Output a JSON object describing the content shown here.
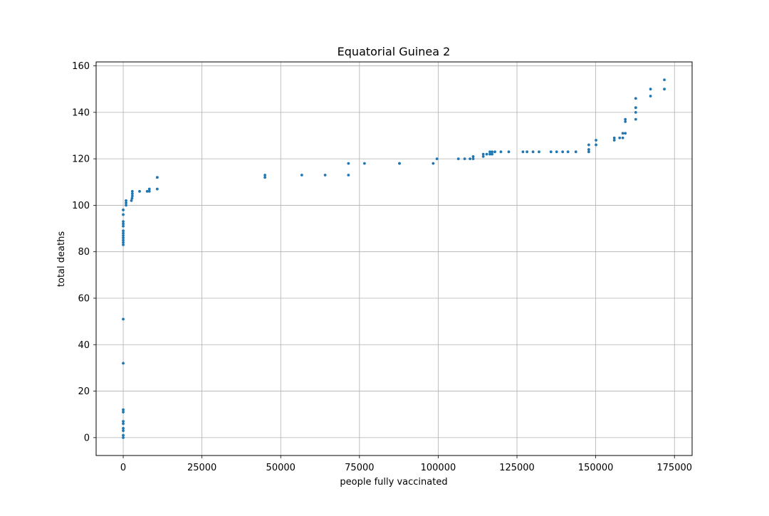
{
  "chart_data": {
    "type": "scatter",
    "title": "Equatorial Guinea 2",
    "xlabel": "people fully vaccinated",
    "ylabel": "total deaths",
    "xlim": [
      -8600,
      180600
    ],
    "ylim": [
      -7.7,
      161.7
    ],
    "xticks": [
      0,
      25000,
      50000,
      75000,
      100000,
      125000,
      150000,
      175000
    ],
    "xtick_labels": [
      "0",
      "25000",
      "50000",
      "75000",
      "100000",
      "125000",
      "150000",
      "175000"
    ],
    "yticks": [
      0,
      20,
      40,
      60,
      80,
      100,
      120,
      140,
      160
    ],
    "ytick_labels": [
      "0",
      "20",
      "40",
      "60",
      "80",
      "100",
      "120",
      "140",
      "160"
    ],
    "grid": true,
    "marker_color": "#1f77b4",
    "series": [
      {
        "points": [
          [
            0,
            0
          ],
          [
            0,
            1
          ],
          [
            0,
            3
          ],
          [
            0,
            4
          ],
          [
            0,
            6
          ],
          [
            0,
            7
          ],
          [
            0,
            11
          ],
          [
            0,
            12
          ],
          [
            0,
            32
          ],
          [
            0,
            51
          ],
          [
            0,
            83
          ],
          [
            0,
            84
          ],
          [
            0,
            85
          ],
          [
            0,
            86
          ],
          [
            0,
            87
          ],
          [
            0,
            88
          ],
          [
            0,
            89
          ],
          [
            0,
            91
          ],
          [
            0,
            92
          ],
          [
            0,
            93
          ],
          [
            0,
            96
          ],
          [
            0,
            98
          ],
          [
            900,
            100
          ],
          [
            900,
            101
          ],
          [
            900,
            102
          ],
          [
            2600,
            102
          ],
          [
            2800,
            103
          ],
          [
            2900,
            104
          ],
          [
            2900,
            105
          ],
          [
            2900,
            106
          ],
          [
            5200,
            106
          ],
          [
            7600,
            106
          ],
          [
            8300,
            106
          ],
          [
            8300,
            107
          ],
          [
            10800,
            112
          ],
          [
            10800,
            112
          ],
          [
            10800,
            107
          ],
          [
            45000,
            112
          ],
          [
            45000,
            113
          ],
          [
            56700,
            113
          ],
          [
            64100,
            113
          ],
          [
            71500,
            113
          ],
          [
            71500,
            118
          ],
          [
            76600,
            118
          ],
          [
            87700,
            118
          ],
          [
            87700,
            118
          ],
          [
            98400,
            118
          ],
          [
            99600,
            120
          ],
          [
            106400,
            120
          ],
          [
            108400,
            120
          ],
          [
            110100,
            120
          ],
          [
            111100,
            120
          ],
          [
            111100,
            121
          ],
          [
            114300,
            121
          ],
          [
            114300,
            122
          ],
          [
            115400,
            122
          ],
          [
            116400,
            122
          ],
          [
            116400,
            123
          ],
          [
            117100,
            122
          ],
          [
            117100,
            123
          ],
          [
            118000,
            123
          ],
          [
            119900,
            123
          ],
          [
            122400,
            123
          ],
          [
            126900,
            123
          ],
          [
            128200,
            123
          ],
          [
            130100,
            123
          ],
          [
            132000,
            123
          ],
          [
            135800,
            123
          ],
          [
            137600,
            123
          ],
          [
            139500,
            123
          ],
          [
            141200,
            123
          ],
          [
            143700,
            123
          ],
          [
            147800,
            123
          ],
          [
            147800,
            124
          ],
          [
            147800,
            126
          ],
          [
            150100,
            126
          ],
          [
            150100,
            128
          ],
          [
            155900,
            128
          ],
          [
            155900,
            129
          ],
          [
            157600,
            129
          ],
          [
            158600,
            129
          ],
          [
            158600,
            131
          ],
          [
            159400,
            131
          ],
          [
            159400,
            136
          ],
          [
            159400,
            137
          ],
          [
            162700,
            137
          ],
          [
            162700,
            140
          ],
          [
            162700,
            142
          ],
          [
            162700,
            142
          ],
          [
            162700,
            146
          ],
          [
            167400,
            147
          ],
          [
            167400,
            150
          ],
          [
            171800,
            150
          ],
          [
            171800,
            154
          ]
        ]
      }
    ]
  }
}
